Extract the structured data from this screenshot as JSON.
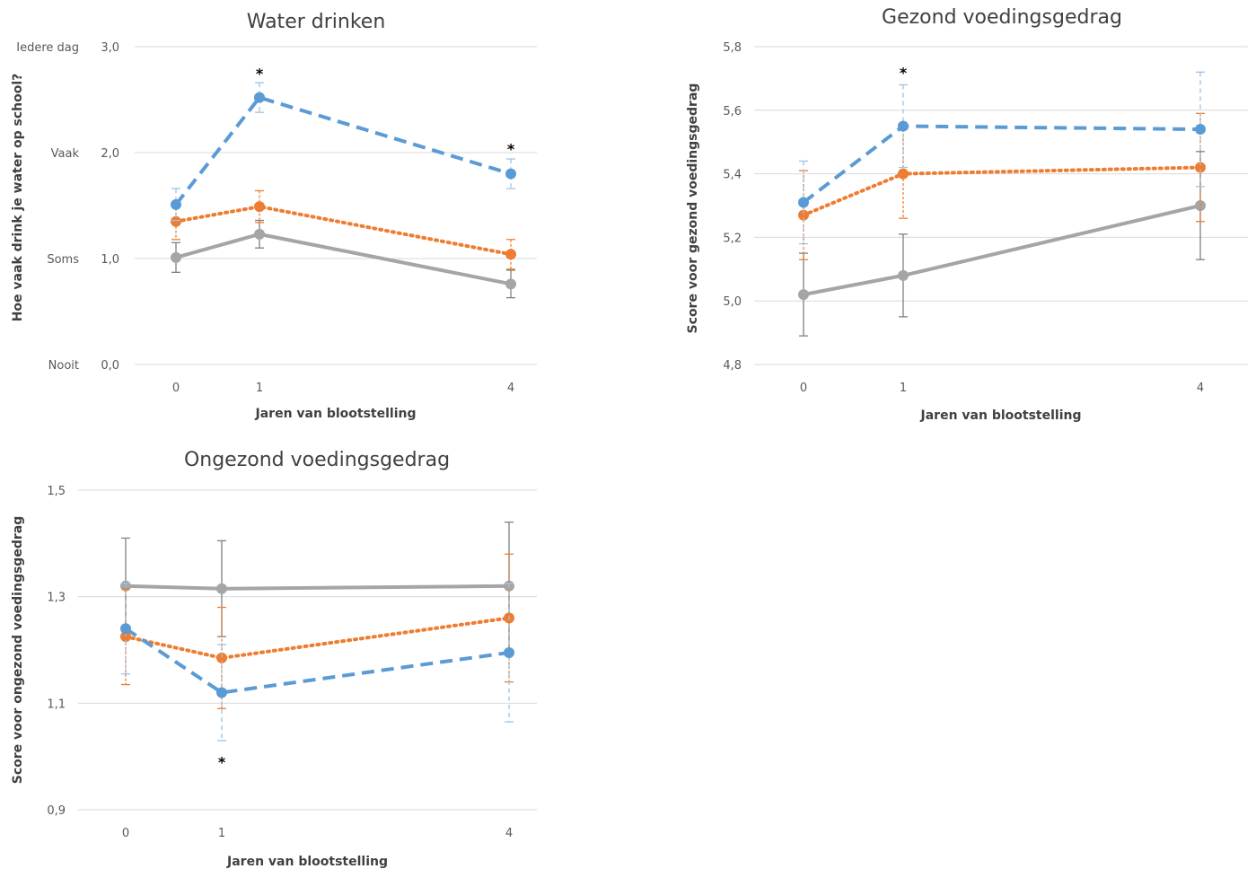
{
  "chart_data": [
    {
      "type": "line",
      "title": "Water drinken",
      "xlabel": "Jaren van blootstelling",
      "ylabel": "Hoe vaak drink je water op school?",
      "x": [
        0,
        1,
        4
      ],
      "x_tick_labels": [
        "0",
        "1",
        "4"
      ],
      "ylim": [
        0.0,
        3.0
      ],
      "y_ticks": [
        0.0,
        1.0,
        2.0,
        3.0
      ],
      "y_tick_labels": [
        "0,0",
        "1,0",
        "2,0",
        "3,0"
      ],
      "y_category_labels": [
        "Nooit",
        "Soms",
        "Vaak",
        "Iedere dag"
      ],
      "grid": true,
      "series": [
        {
          "style": "solid",
          "color": "#a5a5a5",
          "values": [
            1.01,
            1.23,
            0.76
          ],
          "err": [
            0.14,
            0.13,
            0.13
          ]
        },
        {
          "style": "dotted",
          "color": "#ed7d31",
          "values": [
            1.35,
            1.49,
            1.04
          ],
          "err": [
            0.17,
            0.15,
            0.14
          ]
        },
        {
          "style": "dashed",
          "color": "#5b9bd5",
          "values": [
            1.51,
            2.52,
            1.8
          ],
          "err": [
            0.15,
            0.14,
            0.14
          ]
        }
      ],
      "annotations": [
        {
          "text": "*",
          "x": 1,
          "y": 2.75
        },
        {
          "text": "*",
          "x": 4,
          "y": 2.04
        }
      ]
    },
    {
      "type": "line",
      "title": "Gezond voedingsgedrag",
      "xlabel": "Jaren van blootstelling",
      "ylabel": "Score voor gezond voedingsgedrag",
      "x": [
        0,
        1,
        4
      ],
      "x_tick_labels": [
        "0",
        "1",
        "4"
      ],
      "ylim": [
        4.8,
        5.8
      ],
      "y_ticks": [
        4.8,
        5.0,
        5.2,
        5.4,
        5.6,
        5.8
      ],
      "y_tick_labels": [
        "4,8",
        "5,0",
        "5,2",
        "5,4",
        "5,6",
        "5,8"
      ],
      "grid": true,
      "series": [
        {
          "style": "solid",
          "color": "#a5a5a5",
          "values": [
            5.02,
            5.08,
            5.3
          ],
          "err": [
            0.13,
            0.13,
            0.17
          ]
        },
        {
          "style": "dotted",
          "color": "#ed7d31",
          "values": [
            5.27,
            5.4,
            5.42
          ],
          "err": [
            0.14,
            0.14,
            0.17
          ]
        },
        {
          "style": "dashed",
          "color": "#5b9bd5",
          "values": [
            5.31,
            5.55,
            5.54
          ],
          "err": [
            0.13,
            0.13,
            0.18
          ]
        }
      ],
      "annotations": [
        {
          "text": "*",
          "x": 1,
          "y": 5.72
        }
      ]
    },
    {
      "type": "line",
      "title": "Ongezond voedingsgedrag",
      "xlabel": "Jaren van blootstelling",
      "ylabel": "Score voor ongezond voedingsgedrag",
      "x": [
        0,
        1,
        4
      ],
      "x_tick_labels": [
        "0",
        "1",
        "4"
      ],
      "ylim": [
        0.9,
        1.5
      ],
      "y_ticks": [
        0.9,
        1.1,
        1.3,
        1.5
      ],
      "y_tick_labels": [
        "0,9",
        "1,1",
        "1,3",
        "1,5"
      ],
      "grid": true,
      "series": [
        {
          "style": "solid",
          "color": "#a5a5a5",
          "values": [
            1.32,
            1.315,
            1.32
          ],
          "err": [
            0.09,
            0.09,
            0.12
          ]
        },
        {
          "style": "dotted",
          "color": "#ed7d31",
          "values": [
            1.225,
            1.185,
            1.26
          ],
          "err": [
            0.09,
            0.095,
            0.12
          ]
        },
        {
          "style": "dashed",
          "color": "#5b9bd5",
          "values": [
            1.24,
            1.12,
            1.195
          ],
          "err": [
            0.085,
            0.09,
            0.13
          ]
        }
      ],
      "annotations": [
        {
          "text": "*",
          "x": 1,
          "y": 0.99
        }
      ]
    }
  ]
}
